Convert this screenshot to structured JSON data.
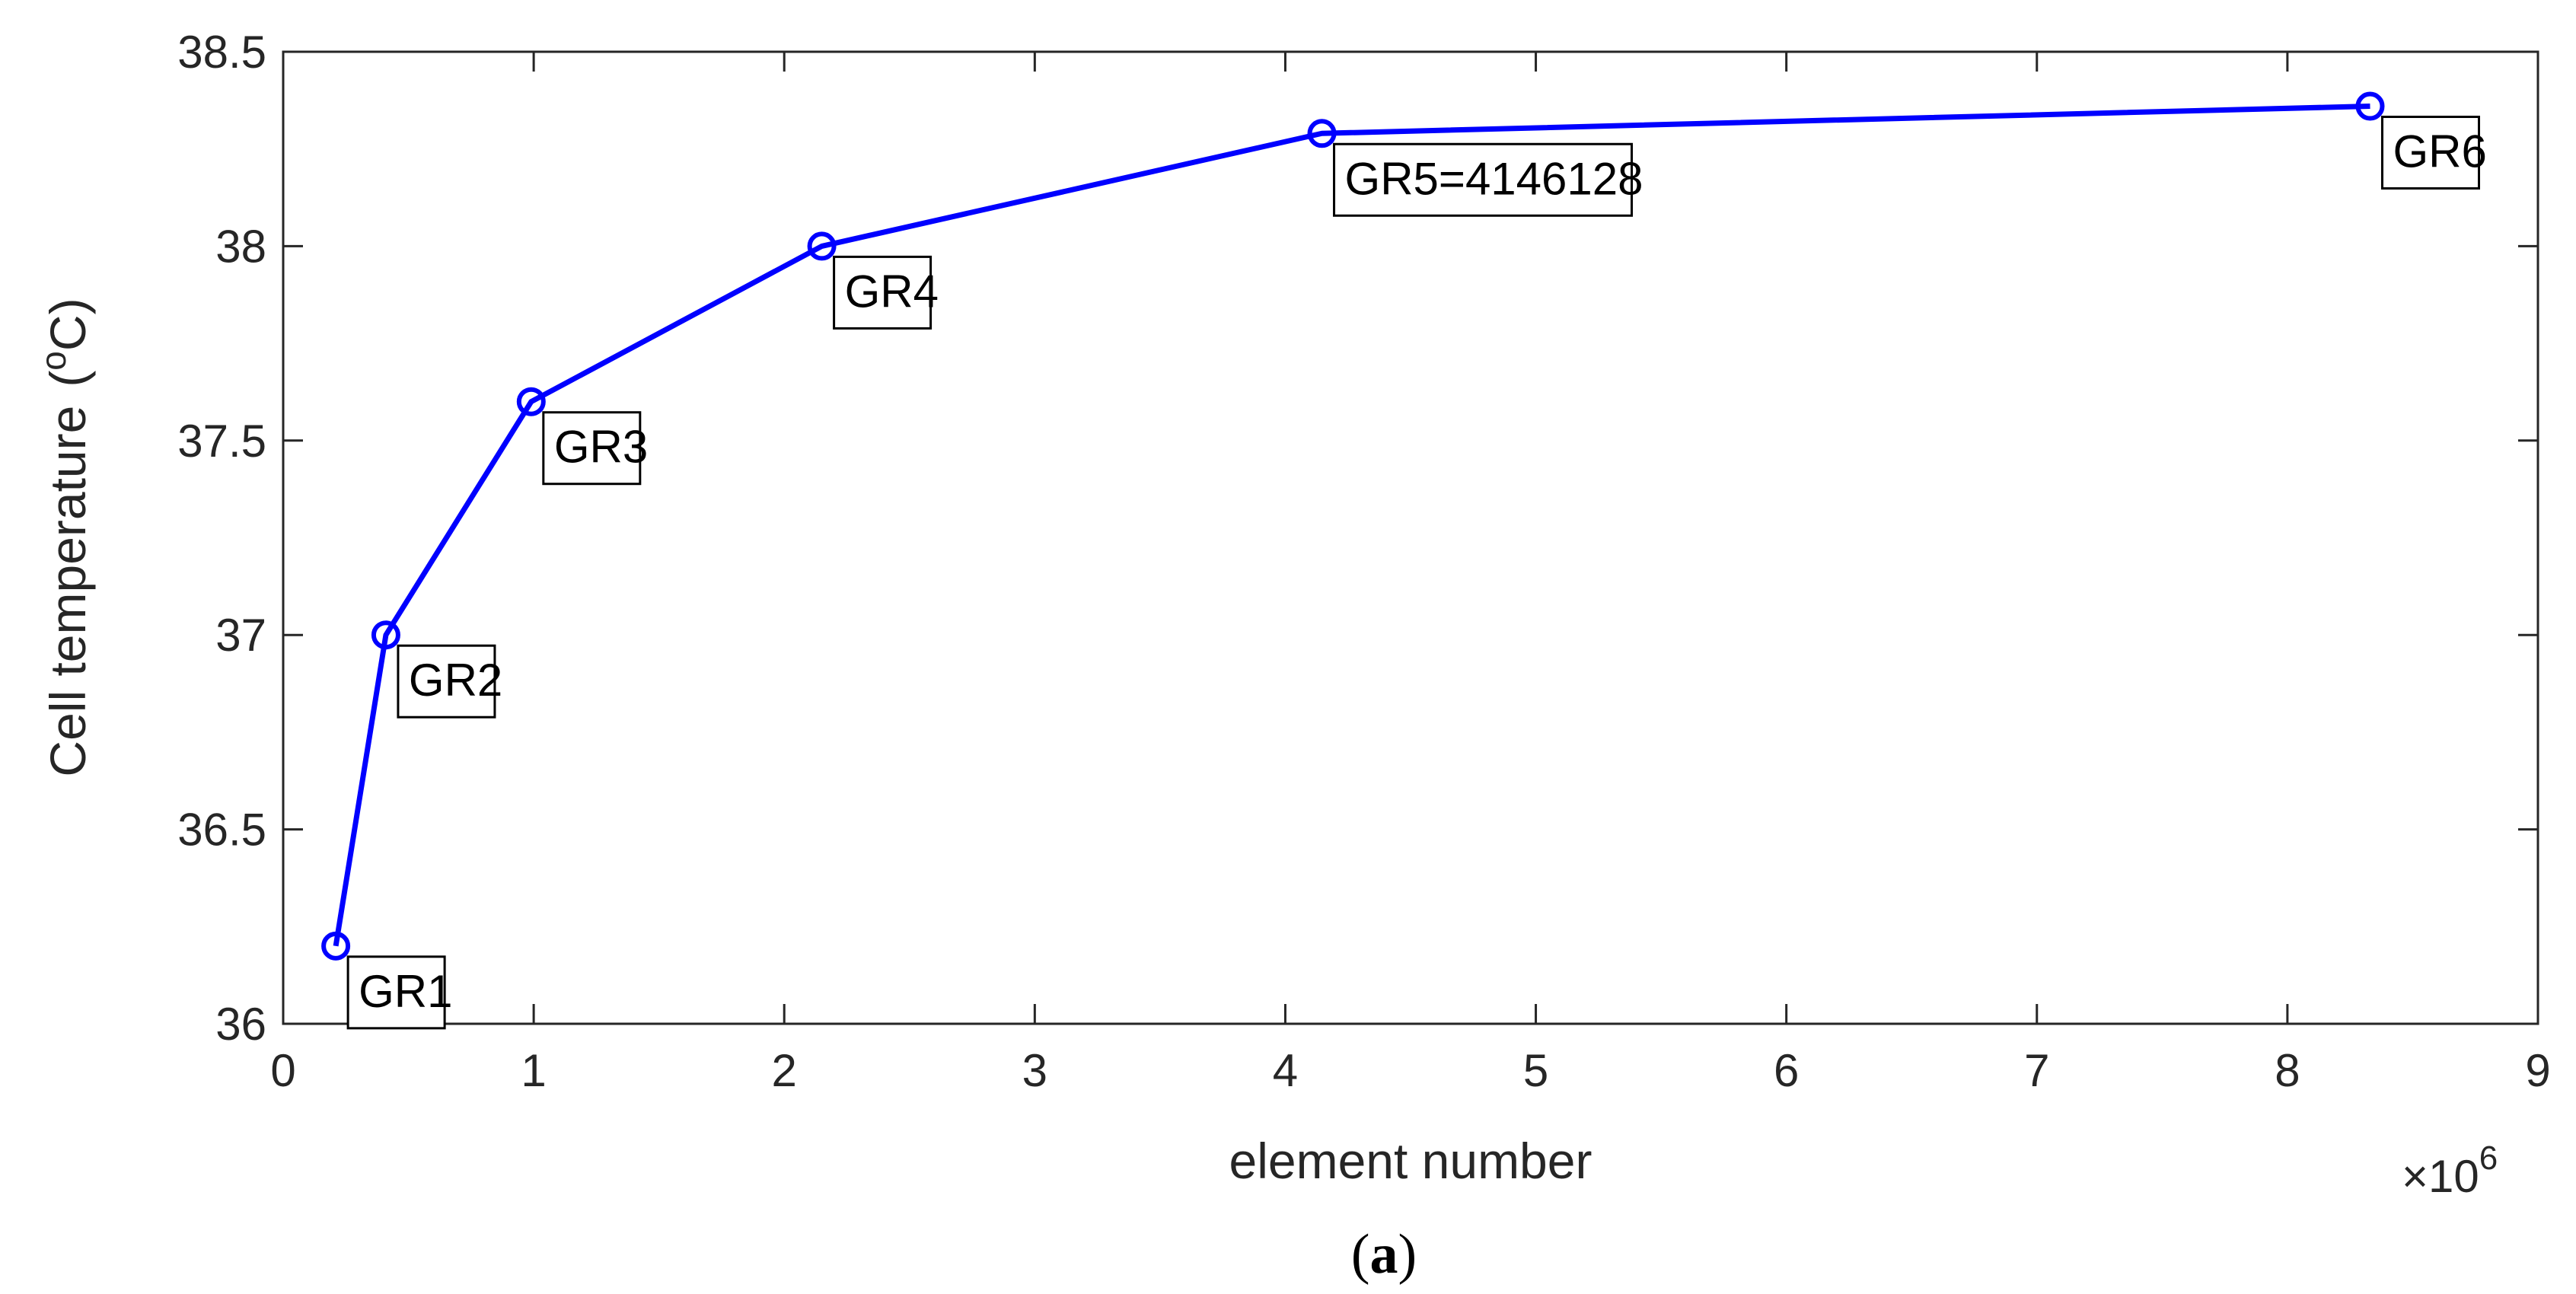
{
  "chart_data": {
    "type": "line",
    "xlabel": "element number",
    "ylabel": "Cell temperature",
    "ylabel_unit_degree": "o",
    "ylabel_unit_letter": "C",
    "x_exponent_prefix": "×10",
    "x_exponent_power": "6",
    "xlim": [
      0,
      9
    ],
    "ylim": [
      36,
      38.5
    ],
    "x_scale_factor": 1000000,
    "x_ticks": [
      0,
      1,
      2,
      3,
      4,
      5,
      6,
      7,
      8,
      9
    ],
    "x_tick_labels": [
      "0",
      "1",
      "2",
      "3",
      "4",
      "5",
      "6",
      "7",
      "8",
      "9"
    ],
    "y_ticks": [
      36,
      36.5,
      37,
      37.5,
      38,
      38.5
    ],
    "y_tick_labels": [
      "36",
      "36.5",
      "37",
      "37.5",
      "38",
      "38.5"
    ],
    "grid": false,
    "color": "#0000ff",
    "marker": "circle",
    "points": [
      {
        "label": "GR1",
        "x": 0.21,
        "y": 36.2
      },
      {
        "label": "GR2",
        "x": 0.41,
        "y": 37.0
      },
      {
        "label": "GR3",
        "x": 0.99,
        "y": 37.6
      },
      {
        "label": "GR4",
        "x": 2.15,
        "y": 38.0
      },
      {
        "label": "GR5=4146128",
        "x": 4.146128,
        "y": 38.29
      },
      {
        "label": "GR6",
        "x": 8.33,
        "y": 38.36
      }
    ]
  },
  "caption": {
    "open": "(",
    "letter": "a",
    "close": ")"
  }
}
